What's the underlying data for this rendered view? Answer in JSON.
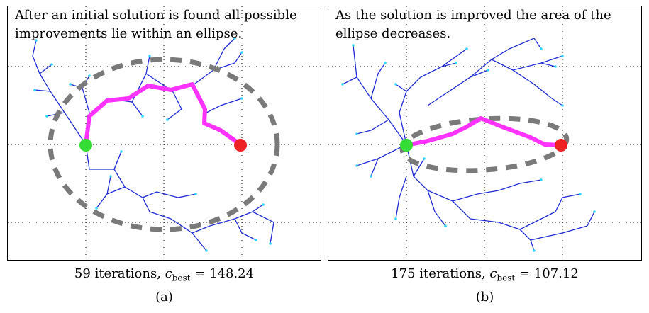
{
  "panels": [
    {
      "text": "After an initial solution is found all possible improvements lie within an ellipse.",
      "iterations": "59",
      "cbest_value": "148.24",
      "label": "(a)"
    },
    {
      "text": "As the solution is improved the area of the ellipse decreases.",
      "iterations": "175",
      "cbest_value": "107.12",
      "label": "(b)"
    }
  ],
  "caption_parts": {
    "iterations_word": "iterations,",
    "c": "c",
    "sub": "best",
    "equals": "="
  },
  "colors": {
    "tree": "#1f2bd6",
    "node": "#33d6ff",
    "path": "#ff33ff",
    "start": "#33dd33",
    "goal": "#ee2222",
    "ellipse": "#7a7a7a"
  }
}
